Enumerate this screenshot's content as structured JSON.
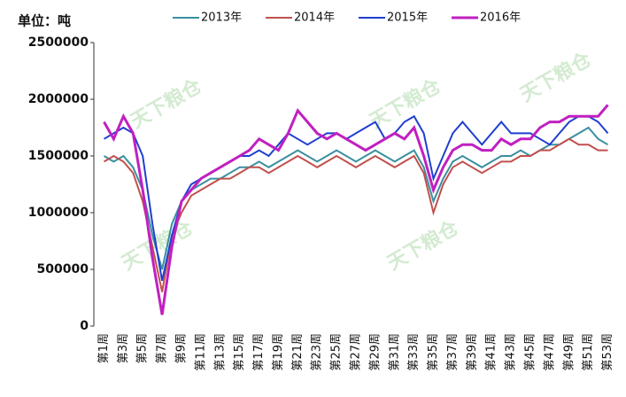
{
  "chart_data": {
    "type": "line",
    "title": "单位：吨",
    "watermark": "天下粮仓",
    "categories": [
      "第1周",
      null,
      "第3周",
      null,
      "第5周",
      null,
      "第7周",
      null,
      "第9周",
      null,
      "第11周",
      null,
      "第13周",
      null,
      "第15周",
      null,
      "第17周",
      null,
      "第19周",
      null,
      "第21周",
      null,
      "第23周",
      null,
      "第25周",
      null,
      "第27周",
      null,
      "第29周",
      null,
      "第31周",
      null,
      "第33周",
      null,
      "第35周",
      null,
      "第37周",
      null,
      "第39周",
      null,
      "第41周",
      null,
      "第43周",
      null,
      "第45周",
      null,
      "第47周",
      null,
      "第49周",
      null,
      "第51周",
      null,
      "第53周"
    ],
    "ylim": [
      0,
      2500000
    ],
    "yticks": [
      0,
      500000,
      1000000,
      1500000,
      2000000,
      2500000
    ],
    "series": [
      {
        "name": "2013年",
        "color": "#3a8fa0",
        "values": [
          1500000,
          1450000,
          1500000,
          1400000,
          1200000,
          800000,
          500000,
          900000,
          1100000,
          1200000,
          1250000,
          1300000,
          1300000,
          1350000,
          1400000,
          1400000,
          1450000,
          1400000,
          1450000,
          1500000,
          1550000,
          1500000,
          1450000,
          1500000,
          1550000,
          1500000,
          1450000,
          1500000,
          1550000,
          1500000,
          1450000,
          1500000,
          1550000,
          1400000,
          1100000,
          1300000,
          1450000,
          1500000,
          1450000,
          1400000,
          1450000,
          1500000,
          1500000,
          1550000,
          1500000,
          1550000,
          1600000,
          1600000,
          1650000,
          1700000,
          1750000,
          1650000,
          1600000
        ]
      },
      {
        "name": "2014年",
        "color": "#c0504d",
        "values": [
          1450000,
          1500000,
          1450000,
          1350000,
          1100000,
          700000,
          300000,
          800000,
          1000000,
          1150000,
          1200000,
          1250000,
          1300000,
          1300000,
          1350000,
          1400000,
          1400000,
          1350000,
          1400000,
          1450000,
          1500000,
          1450000,
          1400000,
          1450000,
          1500000,
          1450000,
          1400000,
          1450000,
          1500000,
          1450000,
          1400000,
          1450000,
          1500000,
          1350000,
          1000000,
          1250000,
          1400000,
          1450000,
          1400000,
          1350000,
          1400000,
          1450000,
          1450000,
          1500000,
          1500000,
          1550000,
          1550000,
          1600000,
          1650000,
          1600000,
          1600000,
          1550000,
          1550000
        ]
      },
      {
        "name": "2015年",
        "color": "#1f3fd0",
        "values": [
          1650000,
          1700000,
          1750000,
          1700000,
          1500000,
          900000,
          400000,
          800000,
          1100000,
          1250000,
          1300000,
          1350000,
          1400000,
          1450000,
          1500000,
          1500000,
          1550000,
          1500000,
          1600000,
          1700000,
          1650000,
          1600000,
          1650000,
          1700000,
          1700000,
          1650000,
          1700000,
          1750000,
          1800000,
          1650000,
          1700000,
          1800000,
          1850000,
          1700000,
          1300000,
          1500000,
          1700000,
          1800000,
          1700000,
          1600000,
          1700000,
          1800000,
          1700000,
          1700000,
          1700000,
          1650000,
          1600000,
          1700000,
          1800000,
          1850000,
          1850000,
          1800000,
          1700000
        ]
      },
      {
        "name": "2016年",
        "color": "#c020c0",
        "values": [
          1800000,
          1650000,
          1850000,
          1700000,
          1200000,
          600000,
          100000,
          700000,
          1100000,
          1200000,
          1300000,
          1350000,
          1400000,
          1450000,
          1500000,
          1550000,
          1650000,
          1600000,
          1550000,
          1700000,
          1900000,
          1800000,
          1700000,
          1650000,
          1700000,
          1650000,
          1600000,
          1550000,
          1600000,
          1650000,
          1700000,
          1650000,
          1750000,
          1500000,
          1200000,
          1400000,
          1550000,
          1600000,
          1600000,
          1550000,
          1550000,
          1650000,
          1600000,
          1650000,
          1650000,
          1750000,
          1800000,
          1800000,
          1850000,
          1850000,
          1850000,
          1850000,
          1950000
        ]
      }
    ]
  }
}
